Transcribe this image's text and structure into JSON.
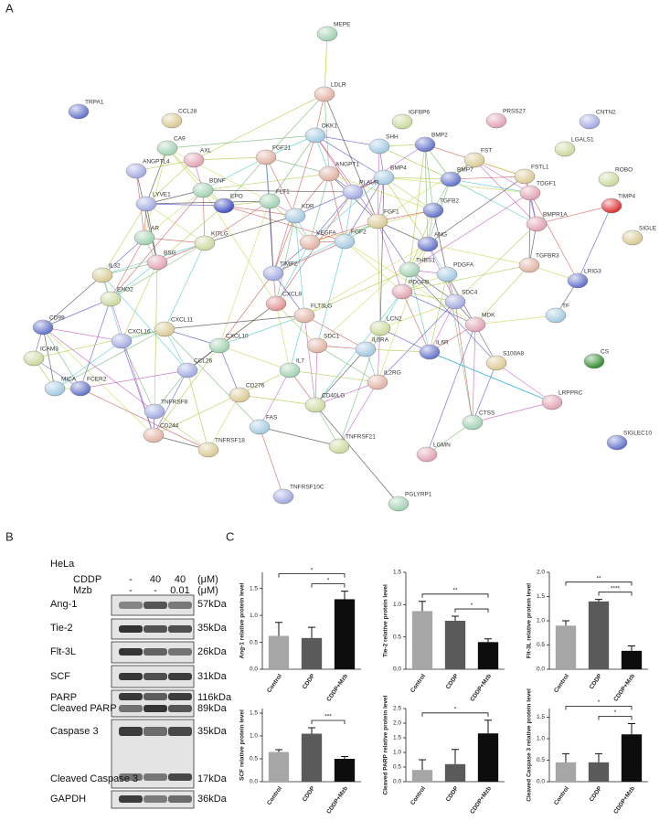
{
  "panel_labels": [
    "A",
    "B",
    "C"
  ],
  "network": {
    "nodes": [
      "MEPE",
      "LDLR",
      "DKK1",
      "TRPA1",
      "CCL28",
      "IGFBP6",
      "PRSS27",
      "CNTN2",
      "CA9",
      "FGF21",
      "SHH",
      "BMP2",
      "FST",
      "LGALS1",
      "AXL",
      "ANGPTL4",
      "BDNF",
      "ANGPT1",
      "BMP4",
      "BMP7",
      "FSTL1",
      "ROBO",
      "TDGF1",
      "PLAUR",
      "FLT1",
      "EPO",
      "KDR",
      "TGFB2",
      "FGF1",
      "TIMP4",
      "BMPR1A",
      "LYVE1",
      "AR",
      "VEGFA",
      "FGF2",
      "ANG",
      "SIGLE",
      "KITLG",
      "BSG",
      "TIMP2",
      "THBS1",
      "TGFBR3",
      "PDGFA",
      "LRIG3",
      "IL32",
      "ENO2",
      "PDGFB",
      "SDC4",
      "CXCL8",
      "FLT3LG",
      "TF",
      "CD99",
      "CXCL11",
      "LCN2",
      "MDK",
      "CXCL16",
      "CXCL10",
      "SDC1",
      "IL6RA",
      "IL6R",
      "S100A8",
      "ICAM3",
      "CS",
      "CCL26",
      "IL7",
      "IL2RG",
      "MICA",
      "FCER2",
      "CD276",
      "CD40LG",
      "LRPPRC",
      "TNFRSF8",
      "CTSS",
      "CD244",
      "FAS",
      "SIGLEC10",
      "TNFRSF18",
      "TNFRSF21",
      "LGMN",
      "TNFRSF10C",
      "PGLYRP1"
    ]
  },
  "blot": {
    "cell_line": "HeLa",
    "treatments": [
      {
        "name": "CDDP",
        "levels": [
          "-",
          "40",
          "40"
        ],
        "unit": "(μM)"
      },
      {
        "name": "Mzb",
        "levels": [
          "-",
          "-",
          "0.01"
        ],
        "unit": "(μM)"
      }
    ],
    "rows": [
      {
        "labels": [
          "Ang-1"
        ],
        "sizes": [
          "57kDa"
        ]
      },
      {
        "labels": [
          "Tie-2"
        ],
        "sizes": [
          "35kDa"
        ]
      },
      {
        "labels": [
          "Flt-3L"
        ],
        "sizes": [
          "26kDa"
        ]
      },
      {
        "labels": [
          "SCF"
        ],
        "sizes": [
          "31kDa"
        ]
      },
      {
        "labels": [
          "PARP",
          "Cleaved PARP"
        ],
        "sizes": [
          "116kDa",
          "89kDa"
        ]
      },
      {
        "labels": [
          "Caspase 3",
          "Cleaved Caspase 3"
        ],
        "sizes": [
          "35kDa",
          "17kDa"
        ]
      },
      {
        "labels": [
          "GAPDH"
        ],
        "sizes": [
          "36kDa"
        ]
      }
    ]
  },
  "chart_data": [
    {
      "type": "bar",
      "ylabel": "Ang-1 relative protein level",
      "categories": [
        "Control",
        "CDDP",
        "CDDP+Mzb"
      ],
      "values": [
        0.62,
        0.58,
        1.3
      ],
      "errors": [
        0.25,
        0.2,
        0.15
      ],
      "colors": [
        "#a6a6a6",
        "#5a5a5a",
        "#0d0d0d"
      ],
      "ylim": [
        0,
        1.8
      ],
      "yticks": [
        {
          "value": 0,
          "label": "0.0"
        },
        0.5,
        {
          "value": 1,
          "label": "1.0"
        },
        1.5
      ],
      "significance": [
        {
          "from": 0,
          "to": 2,
          "label": "*"
        },
        {
          "from": 1,
          "to": 2,
          "label": "*"
        }
      ]
    },
    {
      "type": "bar",
      "ylabel": "Tie-2 relative protein level",
      "categories": [
        "Control",
        "CDDP",
        "CDDP+Mzb"
      ],
      "values": [
        0.9,
        0.75,
        0.42
      ],
      "errors": [
        0.15,
        0.07,
        0.05
      ],
      "colors": [
        "#a6a6a6",
        "#5a5a5a",
        "#0d0d0d"
      ],
      "ylim": [
        0,
        1.5
      ],
      "yticks": [
        {
          "value": 0,
          "label": "0.0"
        },
        0.5,
        {
          "value": 1,
          "label": "1.0"
        },
        1.5
      ],
      "significance": [
        {
          "from": 0,
          "to": 2,
          "label": "**"
        },
        {
          "from": 1,
          "to": 2,
          "label": "*"
        }
      ]
    },
    {
      "type": "bar",
      "ylabel": "Flt-3L relative protein level",
      "categories": [
        "Control",
        "CDDP",
        "CDDP+Mzb"
      ],
      "values": [
        0.9,
        1.4,
        0.38
      ],
      "errors": [
        0.1,
        0.04,
        0.1
      ],
      "colors": [
        "#a6a6a6",
        "#5a5a5a",
        "#0d0d0d"
      ],
      "ylim": [
        0,
        2
      ],
      "yticks": [
        {
          "value": 0,
          "label": "0.0"
        },
        0.5,
        {
          "value": 1,
          "label": "1.0"
        },
        1.5,
        {
          "value": 2,
          "label": "2.0"
        }
      ],
      "significance": [
        {
          "from": 0,
          "to": 2,
          "label": "**"
        },
        {
          "from": 1,
          "to": 2,
          "label": "****"
        }
      ]
    },
    {
      "type": "bar",
      "ylabel": "SCF relative protein level",
      "categories": [
        "Control",
        "CDDP",
        "CDDP+Mzb"
      ],
      "values": [
        0.65,
        1.05,
        0.5
      ],
      "errors": [
        0.05,
        0.13,
        0.05
      ],
      "colors": [
        "#a6a6a6",
        "#5a5a5a",
        "#0d0d0d"
      ],
      "ylim": [
        0,
        1.6
      ],
      "yticks": [
        {
          "value": 0,
          "label": "0.0"
        },
        0.5,
        {
          "value": 1,
          "label": "1.0"
        },
        1.5
      ],
      "significance": [
        {
          "from": 1,
          "to": 2,
          "label": "***"
        }
      ]
    },
    {
      "type": "bar",
      "ylabel": "Cleaved PARP relative protein level",
      "categories": [
        "Control",
        "CDDP",
        "CDDP+Mzb"
      ],
      "values": [
        0.4,
        0.6,
        1.65
      ],
      "errors": [
        0.35,
        0.5,
        0.45
      ],
      "colors": [
        "#a6a6a6",
        "#5a5a5a",
        "#0d0d0d"
      ],
      "ylim": [
        0,
        2.5
      ],
      "yticks": [
        {
          "value": 0,
          "label": "0.0"
        },
        0.5,
        {
          "value": 1,
          "label": "1.0"
        },
        1.5,
        {
          "value": 2,
          "label": "2.0"
        },
        2.5
      ],
      "significance": [
        {
          "from": 0,
          "to": 2,
          "label": "*"
        }
      ]
    },
    {
      "type": "bar",
      "ylabel": "Cleaved Caspase 3 relative protein level",
      "categories": [
        "Control",
        "CDDP",
        "CDDP+Mzb"
      ],
      "values": [
        0.45,
        0.45,
        1.1
      ],
      "errors": [
        0.2,
        0.2,
        0.25
      ],
      "colors": [
        "#a6a6a6",
        "#5a5a5a",
        "#0d0d0d"
      ],
      "ylim": [
        0,
        1.7
      ],
      "yticks": [
        {
          "value": 0,
          "label": "0.0"
        },
        0.5,
        {
          "value": 1,
          "label": "1.0"
        },
        1.5
      ],
      "significance": [
        {
          "from": 0,
          "to": 2,
          "label": "*"
        },
        {
          "from": 1,
          "to": 2,
          "label": "*"
        }
      ]
    }
  ]
}
